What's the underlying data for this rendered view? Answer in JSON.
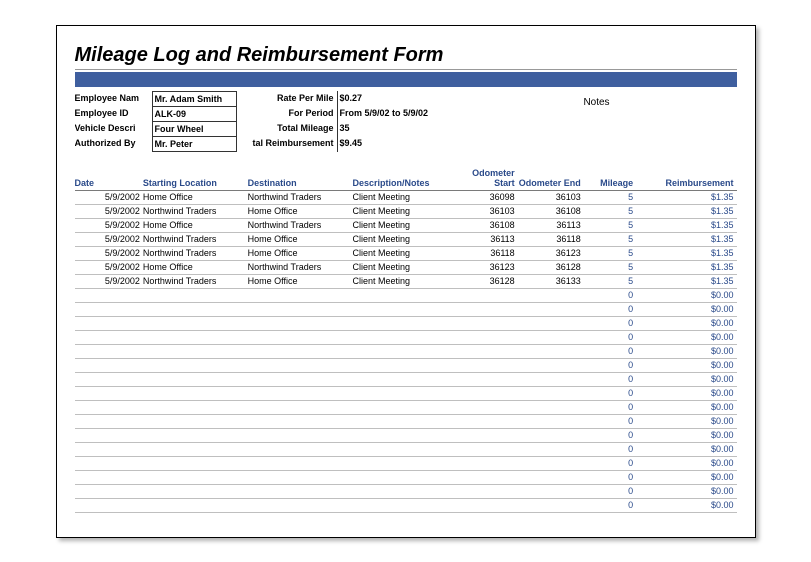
{
  "title": "Mileage Log and Reimbursement Form",
  "colors": {
    "bar": "#3f5f9f",
    "header_text": "#2a4a8a"
  },
  "header": {
    "labels": {
      "emp_name": "Employee Nam",
      "emp_id": "Employee ID",
      "vehicle": "Vehicle Descri",
      "auth": "Authorized By"
    },
    "values": {
      "emp_name": "Mr. Adam Smith",
      "emp_id": "ALK-09",
      "vehicle": "Four Wheel",
      "auth": "Mr. Peter"
    },
    "mid_labels": {
      "rate": "Rate Per Mile",
      "period": "For Period",
      "total_mileage": "Total Mileage",
      "total_reimb": "tal Reimbursement"
    },
    "mid_values": {
      "rate": "$0.27",
      "period": "From 5/9/02 to 5/9/02",
      "total_mileage": "35",
      "total_reimb": "$9.45"
    },
    "notes_label": "Notes"
  },
  "columns": {
    "date": "Date",
    "start": "Starting Location",
    "dest": "Destination",
    "desc": "Description/Notes",
    "ostart": "Odometer Start",
    "oend": "Odometer End",
    "mileage": "Mileage",
    "reimb": "Reimbursement"
  },
  "rows": [
    {
      "date": "5/9/2002",
      "start": "Home Office",
      "dest": "Northwind Traders",
      "desc": "Client Meeting",
      "ostart": "36098",
      "oend": "36103",
      "mileage": "5",
      "reimb": "$1.35"
    },
    {
      "date": "5/9/2002",
      "start": "Northwind Traders",
      "dest": "Home Office",
      "desc": "Client Meeting",
      "ostart": "36103",
      "oend": "36108",
      "mileage": "5",
      "reimb": "$1.35"
    },
    {
      "date": "5/9/2002",
      "start": "Home Office",
      "dest": "Northwind Traders",
      "desc": "Client Meeting",
      "ostart": "36108",
      "oend": "36113",
      "mileage": "5",
      "reimb": "$1.35"
    },
    {
      "date": "5/9/2002",
      "start": "Northwind Traders",
      "dest": "Home Office",
      "desc": "Client Meeting",
      "ostart": "36113",
      "oend": "36118",
      "mileage": "5",
      "reimb": "$1.35"
    },
    {
      "date": "5/9/2002",
      "start": "Northwind Traders",
      "dest": "Home Office",
      "desc": "Client Meeting",
      "ostart": "36118",
      "oend": "36123",
      "mileage": "5",
      "reimb": "$1.35"
    },
    {
      "date": "5/9/2002",
      "start": "Home Office",
      "dest": "Northwind Traders",
      "desc": "Client Meeting",
      "ostart": "36123",
      "oend": "36128",
      "mileage": "5",
      "reimb": "$1.35"
    },
    {
      "date": "5/9/2002",
      "start": "Northwind Traders",
      "dest": "Home Office",
      "desc": "Client Meeting",
      "ostart": "36128",
      "oend": "36133",
      "mileage": "5",
      "reimb": "$1.35"
    }
  ],
  "empty_row": {
    "mileage": "0",
    "reimb": "$0.00"
  },
  "empty_count": 16
}
